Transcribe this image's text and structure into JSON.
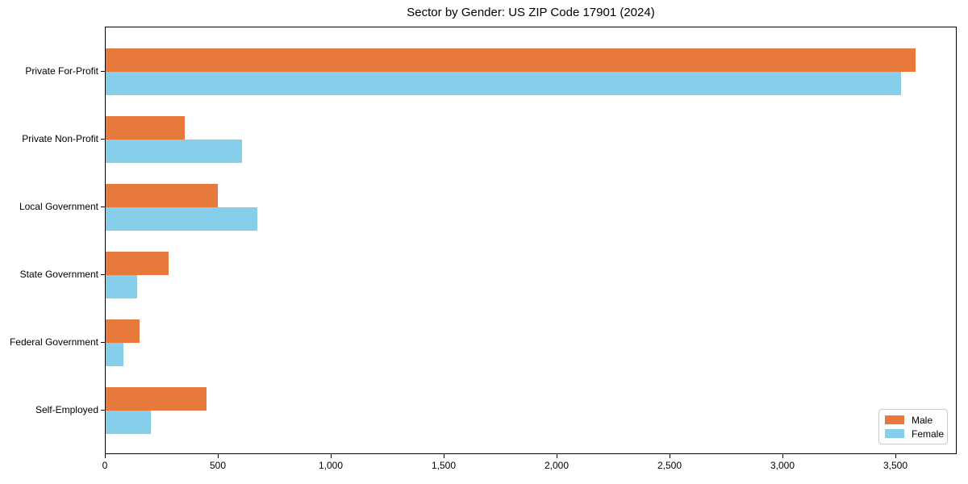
{
  "chart_data": {
    "type": "bar",
    "orientation": "horizontal",
    "title": "Sector by Gender: US ZIP Code 17901 (2024)",
    "categories": [
      "Private For-Profit",
      "Private Non-Profit",
      "Local Government",
      "State Government",
      "Federal Government",
      "Self-Employed"
    ],
    "series": [
      {
        "name": "Male",
        "color": "#e8793d",
        "values": [
          3585,
          350,
          495,
          280,
          150,
          445
        ]
      },
      {
        "name": "Female",
        "color": "#87ceeb",
        "values": [
          3520,
          605,
          670,
          140,
          80,
          200
        ]
      }
    ],
    "xlabel": "",
    "ylabel": "",
    "xlim": [
      0,
      3770
    ],
    "xticks": [
      0,
      500,
      1000,
      1500,
      2000,
      2500,
      3000,
      3500
    ],
    "xtick_labels": [
      "0",
      "500",
      "1,000",
      "1,500",
      "2,000",
      "2,500",
      "3,000",
      "3,500"
    ],
    "grid": false,
    "legend": {
      "position": "lower right",
      "entries": [
        "Male",
        "Female"
      ]
    }
  },
  "colors": {
    "male": "#e8793d",
    "female": "#87ceeb",
    "axis": "#000000",
    "legend_border": "#cccccc",
    "background": "#ffffff"
  }
}
